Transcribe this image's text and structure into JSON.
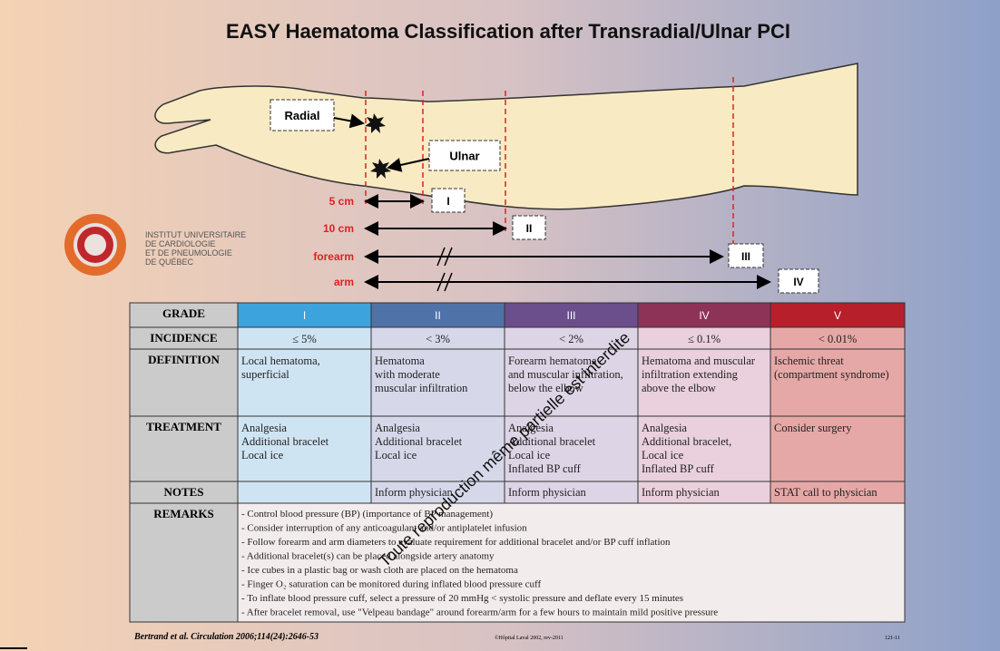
{
  "title": "EASY Haematoma Classification after Transradial/Ulnar PCI",
  "diagram": {
    "sites": [
      "Radial",
      "Ulnar"
    ],
    "distances": [
      "5 cm",
      "10 cm",
      "forearm",
      "arm"
    ],
    "grades": [
      "I",
      "II",
      "III",
      "IV"
    ]
  },
  "institute": [
    "INSTITUT UNIVERSITAIRE",
    "DE CARDIOLOGIE",
    "ET DE PNEUMOLOGIE",
    "DE QUÉBEC"
  ],
  "table": {
    "header": {
      "label": "GRADE",
      "grades": [
        "I",
        "II",
        "III",
        "IV",
        "V"
      ]
    },
    "rows": [
      {
        "label": "INCIDENCE",
        "cells": [
          [
            "≤ 5%"
          ],
          [
            "< 3%"
          ],
          [
            "< 2%"
          ],
          [
            "≤ 0.1%"
          ],
          [
            "< 0.01%"
          ]
        ]
      },
      {
        "label": "DEFINITION",
        "cells": [
          [
            "Local hematoma,",
            "superficial"
          ],
          [
            "Hematoma",
            "with moderate",
            "muscular infiltration"
          ],
          [
            "Forearm hematoma",
            "and muscular infiltration,",
            "below the elbow"
          ],
          [
            "Hematoma and muscular",
            "infiltration extending",
            "above the elbow"
          ],
          [
            "Ischemic threat",
            "(compartment syndrome)"
          ]
        ]
      },
      {
        "label": "TREATMENT",
        "cells": [
          [
            "Analgesia",
            "Additional bracelet",
            "Local ice"
          ],
          [
            "Analgesia",
            "Additional bracelet",
            "Local ice"
          ],
          [
            "Analgesia",
            "Additional bracelet",
            "Local ice",
            "Inflated BP cuff"
          ],
          [
            "Analgesia",
            "Additional bracelet,",
            "Local ice",
            "Inflated BP cuff"
          ],
          [
            "Consider surgery"
          ]
        ]
      }
    ],
    "notes": {
      "label": "NOTES",
      "cells": [
        "Inform physician",
        "Inform physician",
        "Inform physician",
        "STAT call  to physician"
      ]
    },
    "remarks": {
      "label": "REMARKS",
      "lines": [
        "- Control blood pressure (BP) (importance of BP management)",
        "- Consider interruption of any anticoagulant and/or antiplatelet infusion",
        "- Follow forearm and arm diameters to evaluate requirement for additional bracelet and/or BP cuff inflation",
        "- Additional bracelet(s) can be placed alongside artery anatomy",
        "- Ice cubes in a plastic bag or wash cloth are placed on the hematoma",
        "- Finger O₂ saturation can be monitored during inflated blood pressure cuff",
        "- To inflate blood pressure cuff, select a pressure of 20 mmHg < systolic pressure and deflate every 15 minutes",
        "- After bracelet removal, use \"Velpeau bandage\" around forearm/arm for a few hours to maintain mild positive pressure"
      ]
    }
  },
  "footer": {
    "citation": "Bertrand et al. Circulation 2006;114(24):2646-53",
    "copyright": "©Hôpital Laval 2002, rev-2011",
    "code": "121-11"
  },
  "watermark": "Toute reproduction même partielle est interdite"
}
